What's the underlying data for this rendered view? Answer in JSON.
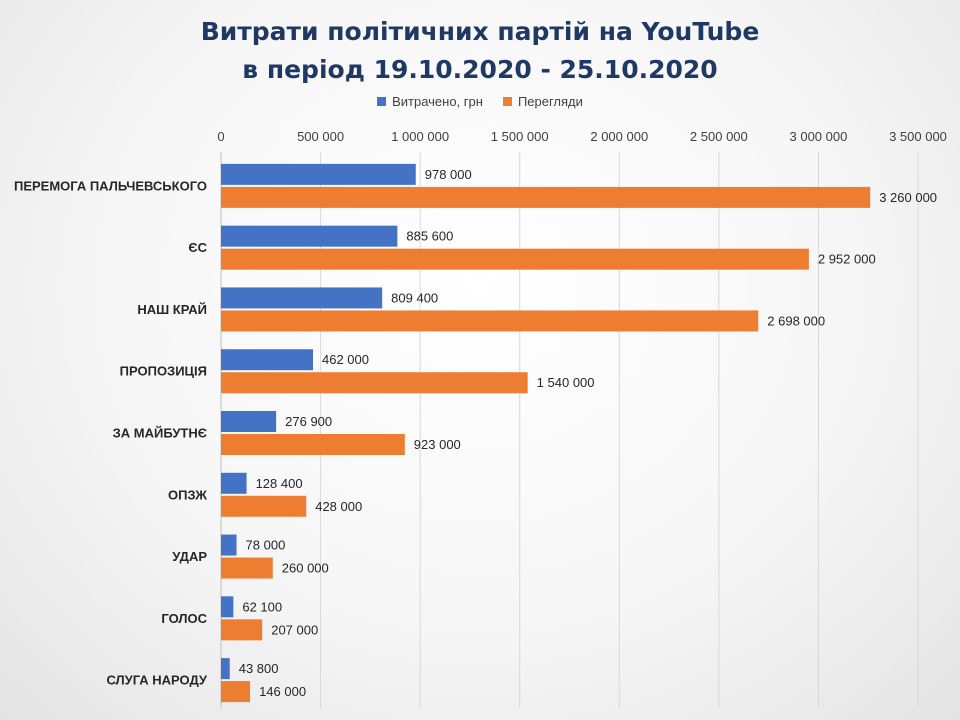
{
  "chart_data": {
    "type": "bar",
    "orientation": "horizontal",
    "title_line1": "Витрати політичних партій на YouTube",
    "title_line2": "в період 19.10.2020 - 25.10.2020",
    "xlabel": "",
    "ylabel": "",
    "xlim": [
      0,
      3500000
    ],
    "x_ticks": [
      "0",
      "500 000",
      "1 000 000",
      "1 500 000",
      "2 000 000",
      "2 500 000",
      "3 000 000",
      "3 500 000"
    ],
    "x_tick_values": [
      0,
      500000,
      1000000,
      1500000,
      2000000,
      2500000,
      3000000,
      3500000
    ],
    "x_axis_position": "top",
    "legend_position": "top-center",
    "grid": true,
    "categories": [
      "ПЕРЕМОГА ПАЛЬЧЕВСЬКОГО",
      "ЄС",
      "НАШ КРАЙ",
      "ПРОПОЗИЦІЯ",
      "ЗА МАЙБУТНЄ",
      "ОПЗЖ",
      "УДАР",
      "ГОЛОС",
      "СЛУГА НАРОДУ"
    ],
    "series": [
      {
        "name": "Витрачено, грн",
        "color": "#4472c4",
        "values": [
          978000,
          885600,
          809400,
          462000,
          276900,
          128400,
          78000,
          62100,
          43800
        ],
        "labels": [
          "978 000",
          "885 600",
          "809 400",
          "462 000",
          "276 900",
          "128 400",
          "78 000",
          "62 100",
          "43 800"
        ]
      },
      {
        "name": "Перегляди",
        "color": "#ed7d31",
        "values": [
          3260000,
          2952000,
          2698000,
          1540000,
          923000,
          428000,
          260000,
          207000,
          146000
        ],
        "labels": [
          "3 260 000",
          "2 952 000",
          "2 698 000",
          "1 540 000",
          "923 000",
          "428 000",
          "260 000",
          "207 000",
          "146 000"
        ]
      }
    ]
  }
}
